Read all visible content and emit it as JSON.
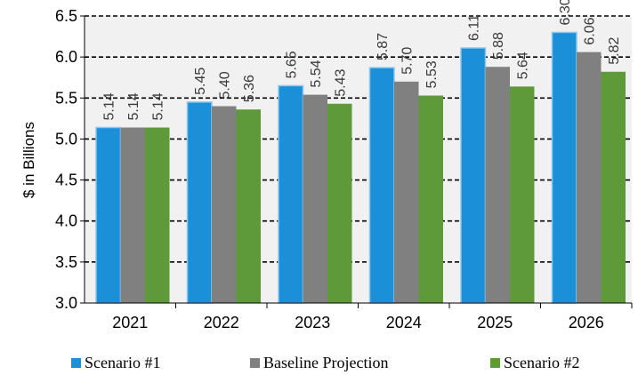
{
  "chart_data": {
    "type": "bar",
    "title": "",
    "xlabel": "",
    "ylabel": "$ in Billions",
    "ylim": [
      3.0,
      6.5
    ],
    "yticks": [
      "3.0",
      "3.5",
      "4.0",
      "4.5",
      "5.0",
      "5.5",
      "6.0",
      "6.5"
    ],
    "categories": [
      "2021",
      "2022",
      "2023",
      "2024",
      "2025",
      "2026"
    ],
    "series": [
      {
        "name": "Scenario #1",
        "color": "#1b8fd8",
        "values": [
          5.14,
          5.45,
          5.65,
          5.87,
          6.11,
          6.3
        ],
        "labels": [
          "5.14",
          "5.45",
          "5.65",
          "5.87",
          "6.11",
          "6.30"
        ]
      },
      {
        "name": "Baseline Projection",
        "color": "#808080",
        "values": [
          5.14,
          5.4,
          5.54,
          5.7,
          5.88,
          6.06
        ],
        "labels": [
          "5.14",
          "5.40",
          "5.54",
          "5.70",
          "5.88",
          "6.06"
        ]
      },
      {
        "name": "Scenario #2",
        "color": "#5e9a3a",
        "values": [
          5.14,
          5.36,
          5.43,
          5.53,
          5.64,
          5.82
        ],
        "labels": [
          "5.14",
          "5.36",
          "5.43",
          "5.53",
          "5.64",
          "5.82"
        ]
      }
    ],
    "grid": "dashed horizontal",
    "legend_position": "bottom"
  }
}
